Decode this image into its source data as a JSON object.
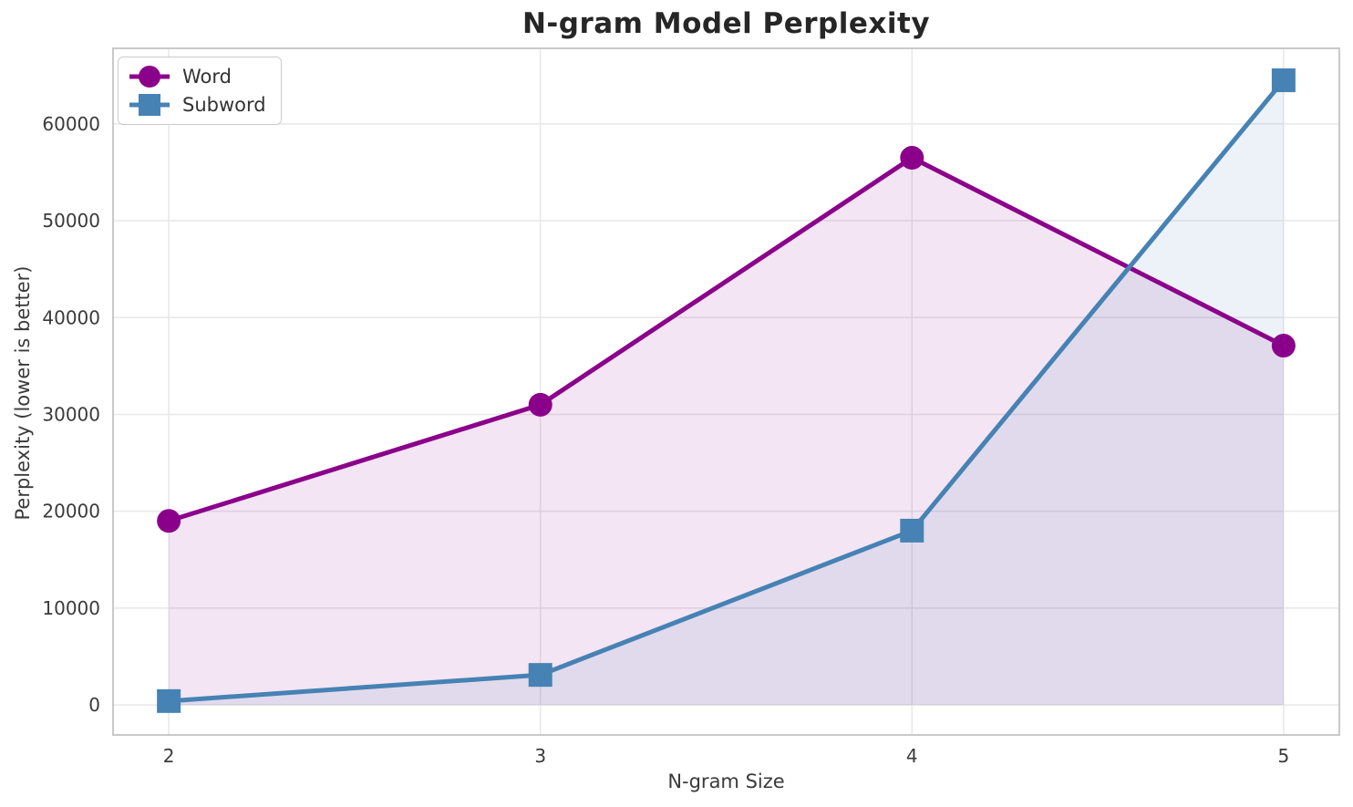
{
  "chart_data": {
    "type": "line",
    "title": "N-gram Model Perplexity",
    "xlabel": "N-gram Size",
    "ylabel": "Perplexity (lower is better)",
    "x": [
      2,
      3,
      4,
      5
    ],
    "series": [
      {
        "name": "Word",
        "color": "#8B008B",
        "marker": "circle",
        "values": [
          19000,
          31000,
          56500,
          37100
        ]
      },
      {
        "name": "Subword",
        "color": "#4682B4",
        "marker": "square",
        "values": [
          400,
          3100,
          18000,
          64500
        ]
      }
    ],
    "fill_to_zero": true,
    "fill_opacity": 0.1,
    "xticks": [
      "2",
      "3",
      "4",
      "5"
    ],
    "xtick_values": [
      2,
      3,
      4,
      5
    ],
    "yticks": [
      "0",
      "10000",
      "20000",
      "30000",
      "40000",
      "50000",
      "60000"
    ],
    "ytick_values": [
      0,
      10000,
      20000,
      30000,
      40000,
      50000,
      60000
    ],
    "xlim": [
      1.85,
      5.15
    ],
    "ylim": [
      -3100,
      67800
    ],
    "grid": true,
    "grid_color": "#e7e7e7",
    "spine_color": "#c9c9c9",
    "tick_label_color": "#3a3a3a",
    "legend_position": "upper-left"
  }
}
